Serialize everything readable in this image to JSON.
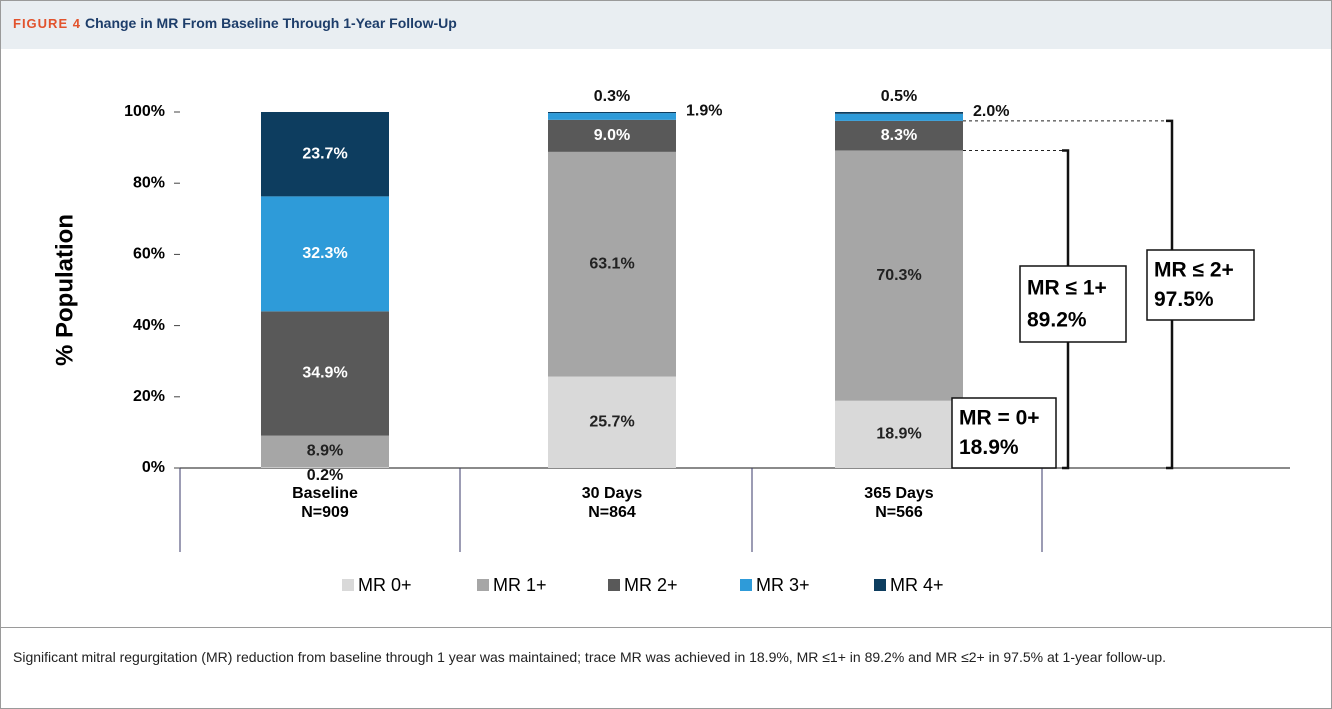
{
  "figure_label": "FIGURE 4",
  "title": "Change in MR From Baseline Through 1-Year Follow-Up",
  "caption": "Significant mitral regurgitation (MR) reduction from baseline through 1 year was maintained; trace MR was achieved in 18.9%, MR ≤1+ in 89.2% and MR ≤2+ in 97.5% at 1-year follow-up.",
  "chart_data": {
    "type": "stacked_bar",
    "y_label": "% Population",
    "categories": [
      "Baseline",
      "30 Days",
      "365 Days"
    ],
    "category_sublabels": [
      "N=909",
      "N=864",
      "N=566"
    ],
    "ylim": [
      0,
      100
    ],
    "yticks": [
      {
        "value": 0,
        "label": "0%"
      },
      {
        "value": 20,
        "label": "20%"
      },
      {
        "value": 40,
        "label": "40%"
      },
      {
        "value": 60,
        "label": "60%"
      },
      {
        "value": 80,
        "label": "80%"
      },
      {
        "value": 100,
        "label": "100%"
      }
    ],
    "series": [
      {
        "name": "MR 0+",
        "color": "#d9d9d9",
        "values": [
          0.2,
          25.7,
          18.9
        ],
        "value_labels": [
          "0.2%",
          "25.7%",
          "18.9%"
        ]
      },
      {
        "name": "MR 1+",
        "color": "#a6a6a6",
        "values": [
          8.9,
          63.1,
          70.3
        ],
        "value_labels": [
          "8.9%",
          "63.1%",
          "70.3%"
        ]
      },
      {
        "name": "MR 2+",
        "color": "#595959",
        "values": [
          34.9,
          9.0,
          8.3
        ],
        "value_labels": [
          "34.9%",
          "9.0%",
          "8.3%"
        ]
      },
      {
        "name": "MR 3+",
        "color": "#2e9bd9",
        "values": [
          32.3,
          1.9,
          2.0
        ],
        "value_labels": [
          "32.3%",
          "1.9%",
          "2.0%"
        ]
      },
      {
        "name": "MR 4+",
        "color": "#0d3d5f",
        "values": [
          23.7,
          0.3,
          0.5
        ],
        "value_labels": [
          "23.7%",
          "0.3%",
          "0.5%"
        ]
      }
    ],
    "annotations": [
      {
        "label": "MR = 0+",
        "value": 18.9,
        "value_label": "18.9%"
      },
      {
        "label": "MR ≤ 1+",
        "value": 89.2,
        "value_label": "89.2%"
      },
      {
        "label": "MR ≤ 2+",
        "value": 97.5,
        "value_label": "97.5%"
      }
    ]
  }
}
